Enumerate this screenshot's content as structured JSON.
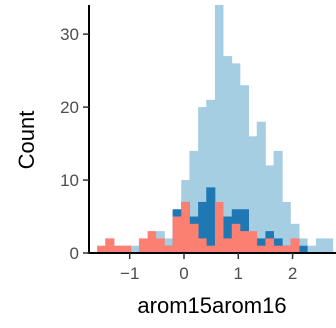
{
  "chart_data": {
    "type": "bar",
    "subtype": "overlaid-histogram",
    "xlabel": "arom15arom16",
    "ylabel": "Count",
    "xlim": [
      -1.75,
      2.8
    ],
    "ylim": [
      0,
      34
    ],
    "x_ticks": [
      -1,
      0,
      1,
      2
    ],
    "x_tick_labels": [
      "−1",
      "0",
      "1",
      "2"
    ],
    "y_ticks": [
      0,
      10,
      20,
      30
    ],
    "y_tick_labels": [
      "0",
      "10",
      "20",
      "30"
    ],
    "grid": false,
    "legend": "none",
    "bin_width": 0.1552,
    "series": [
      {
        "color": "#a6cee3",
        "bins": [
          [
            -1.6,
            -1.45,
            0
          ],
          [
            -1.45,
            -1.29,
            2
          ],
          [
            -1.29,
            -1.14,
            1
          ],
          [
            -1.14,
            -0.98,
            1
          ],
          [
            -0.98,
            -0.83,
            1
          ],
          [
            -0.83,
            -0.67,
            0
          ],
          [
            -0.67,
            -0.52,
            1
          ],
          [
            -0.52,
            -0.36,
            3
          ],
          [
            -0.36,
            -0.21,
            2
          ],
          [
            -0.21,
            -0.05,
            5
          ],
          [
            -0.05,
            0.1,
            10
          ],
          [
            0.1,
            0.26,
            14
          ],
          [
            0.26,
            0.41,
            20
          ],
          [
            0.41,
            0.57,
            21
          ],
          [
            0.57,
            0.72,
            34
          ],
          [
            0.72,
            0.88,
            27
          ],
          [
            0.88,
            1.03,
            26
          ],
          [
            1.03,
            1.19,
            23
          ],
          [
            1.19,
            1.34,
            16
          ],
          [
            1.34,
            1.5,
            18
          ],
          [
            1.5,
            1.65,
            12
          ],
          [
            1.65,
            1.81,
            14
          ],
          [
            1.81,
            1.96,
            7
          ],
          [
            1.96,
            2.12,
            4
          ],
          [
            2.12,
            2.27,
            2
          ],
          [
            2.27,
            2.43,
            1
          ],
          [
            2.43,
            2.58,
            2
          ],
          [
            2.58,
            2.74,
            2
          ]
        ]
      },
      {
        "color": "#1f78b4",
        "bins": [
          [
            -1.6,
            -1.45,
            0
          ],
          [
            -1.45,
            -1.29,
            1
          ],
          [
            -1.29,
            -1.14,
            0
          ],
          [
            -1.14,
            -0.98,
            0
          ],
          [
            -0.98,
            -0.83,
            0
          ],
          [
            -0.83,
            -0.67,
            0
          ],
          [
            -0.67,
            -0.52,
            0
          ],
          [
            -0.52,
            -0.36,
            1
          ],
          [
            -0.36,
            -0.21,
            1
          ],
          [
            -0.21,
            -0.05,
            6
          ],
          [
            -0.05,
            0.1,
            7
          ],
          [
            0.1,
            0.26,
            5
          ],
          [
            0.26,
            0.41,
            7
          ],
          [
            0.41,
            0.57,
            9
          ],
          [
            0.57,
            0.72,
            4
          ],
          [
            0.72,
            0.88,
            5
          ],
          [
            0.88,
            1.03,
            6
          ],
          [
            1.03,
            1.19,
            6
          ],
          [
            1.19,
            1.34,
            2
          ],
          [
            1.34,
            1.5,
            2
          ],
          [
            1.5,
            1.65,
            3
          ],
          [
            1.65,
            1.81,
            2
          ],
          [
            1.81,
            1.96,
            1
          ],
          [
            1.96,
            2.12,
            0
          ],
          [
            2.12,
            2.27,
            1
          ],
          [
            2.27,
            2.43,
            0
          ],
          [
            2.43,
            2.58,
            0
          ],
          [
            2.58,
            2.74,
            0
          ]
        ]
      },
      {
        "color": "#fb8072",
        "bins": [
          [
            -1.6,
            -1.45,
            1
          ],
          [
            -1.45,
            -1.29,
            2
          ],
          [
            -1.29,
            -1.14,
            1
          ],
          [
            -1.14,
            -0.98,
            1
          ],
          [
            -0.98,
            -0.83,
            0
          ],
          [
            -0.83,
            -0.67,
            2
          ],
          [
            -0.67,
            -0.52,
            3
          ],
          [
            -0.52,
            -0.36,
            2
          ],
          [
            -0.36,
            -0.21,
            1
          ],
          [
            -0.21,
            -0.05,
            5
          ],
          [
            -0.05,
            0.1,
            7
          ],
          [
            0.1,
            0.26,
            4
          ],
          [
            0.26,
            0.41,
            2
          ],
          [
            0.41,
            0.57,
            1
          ],
          [
            0.57,
            0.72,
            7
          ],
          [
            0.72,
            0.88,
            2
          ],
          [
            0.88,
            1.03,
            4
          ],
          [
            1.03,
            1.19,
            3
          ],
          [
            1.19,
            1.34,
            3
          ],
          [
            1.34,
            1.5,
            1
          ],
          [
            1.5,
            1.65,
            2
          ],
          [
            1.65,
            1.81,
            1
          ],
          [
            1.81,
            1.96,
            1
          ],
          [
            1.96,
            2.12,
            2
          ],
          [
            2.12,
            2.27,
            0
          ],
          [
            2.27,
            2.43,
            0
          ],
          [
            2.43,
            2.58,
            0
          ],
          [
            2.58,
            2.74,
            0
          ]
        ]
      }
    ]
  }
}
